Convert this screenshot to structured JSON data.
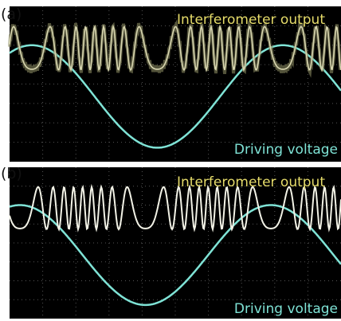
{
  "panels": [
    {
      "label": "(a)",
      "output_label": "Interferometer output",
      "voltage_label": "Driving voltage"
    },
    {
      "label": "(b)",
      "output_label": "Interferometer output",
      "voltage_label": "Driving voltage"
    }
  ]
}
